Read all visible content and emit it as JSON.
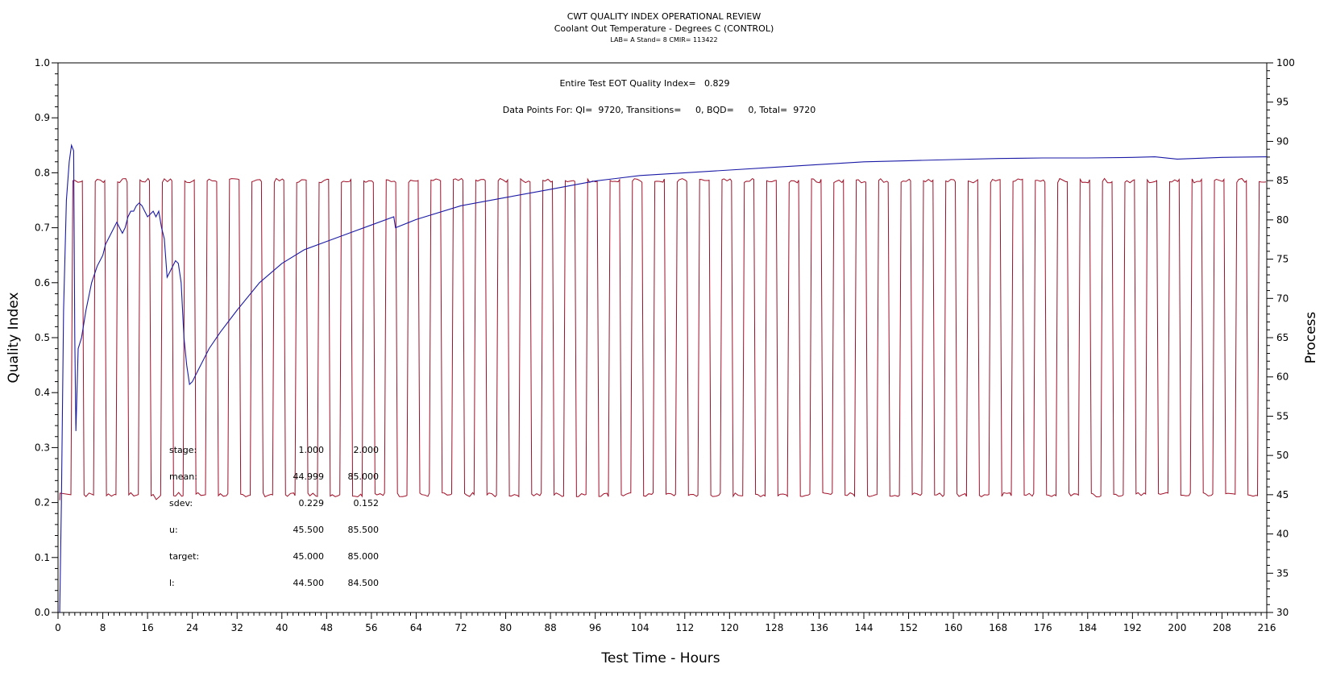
{
  "chart_data": {
    "type": "line",
    "title": "CWT QUALITY INDEX OPERATIONAL REVIEW",
    "subtitle": "Coolant Out Temperature - Degrees C (CONTROL)",
    "subtitle2": "LAB= A Stand= 8 CMIR= 113422",
    "xlabel": "Test Time - Hours",
    "ylabel": "Quality Index",
    "y2label": "Process",
    "xlim": [
      0,
      216
    ],
    "ylim": [
      0,
      1.0
    ],
    "y2lim": [
      30,
      100
    ],
    "xticks": [
      "0",
      "8",
      "16",
      "24",
      "32",
      "40",
      "48",
      "56",
      "64",
      "72",
      "80",
      "88",
      "96",
      "104",
      "112",
      "120",
      "128",
      "136",
      "144",
      "152",
      "160",
      "168",
      "176",
      "184",
      "192",
      "200",
      "208",
      "216"
    ],
    "yticks": [
      "0.0",
      "0.1",
      "0.2",
      "0.3",
      "0.4",
      "0.5",
      "0.6",
      "0.7",
      "0.8",
      "0.9",
      "1.0"
    ],
    "y2ticks": [
      "30",
      "35",
      "40",
      "45",
      "50",
      "55",
      "60",
      "65",
      "70",
      "75",
      "80",
      "85",
      "90",
      "95",
      "100"
    ],
    "annotations": {
      "qi_line": "Entire Test EOT Quality Index=   0.829",
      "points_line": "Data Points For: QI=  9720, Transitions=     0, BQD=     0, Total=  9720"
    },
    "stats_table": {
      "rows": [
        {
          "label": "stage:",
          "v1": "1.000",
          "v2": "2.000"
        },
        {
          "label": "mean:",
          "v1": "44.999",
          "v2": "85.000"
        },
        {
          "label": "sdev:",
          "v1": "0.229",
          "v2": "0.152"
        },
        {
          "label": "u:",
          "v1": "45.500",
          "v2": "85.500"
        },
        {
          "label": "target:",
          "v1": "45.000",
          "v2": "85.000"
        },
        {
          "label": "l:",
          "v1": "44.500",
          "v2": "84.500"
        }
      ]
    },
    "series": [
      {
        "axis": "left",
        "color": "#1a1aa6",
        "points": [
          [
            0.3,
            0.0
          ],
          [
            0.6,
            0.2
          ],
          [
            1.0,
            0.55
          ],
          [
            1.5,
            0.75
          ],
          [
            2.0,
            0.82
          ],
          [
            2.4,
            0.85
          ],
          [
            2.8,
            0.84
          ],
          [
            3.0,
            0.5
          ],
          [
            3.2,
            0.33
          ],
          [
            3.6,
            0.48
          ],
          [
            4.2,
            0.5
          ],
          [
            5,
            0.55
          ],
          [
            6,
            0.6
          ],
          [
            7,
            0.63
          ],
          [
            8,
            0.65
          ],
          [
            8.5,
            0.67
          ],
          [
            9,
            0.68
          ],
          [
            9.5,
            0.69
          ],
          [
            10,
            0.7
          ],
          [
            10.5,
            0.71
          ],
          [
            11,
            0.7
          ],
          [
            11.5,
            0.69
          ],
          [
            12,
            0.7
          ],
          [
            12.5,
            0.72
          ],
          [
            13,
            0.73
          ],
          [
            13.5,
            0.73
          ],
          [
            14,
            0.74
          ],
          [
            14.5,
            0.745
          ],
          [
            15,
            0.74
          ],
          [
            15.5,
            0.73
          ],
          [
            16,
            0.72
          ],
          [
            16.5,
            0.725
          ],
          [
            17,
            0.73
          ],
          [
            17.5,
            0.72
          ],
          [
            18,
            0.73
          ],
          [
            18.5,
            0.7
          ],
          [
            19,
            0.68
          ],
          [
            19.5,
            0.61
          ],
          [
            20,
            0.62
          ],
          [
            20.5,
            0.63
          ],
          [
            21,
            0.64
          ],
          [
            21.5,
            0.635
          ],
          [
            22,
            0.6
          ],
          [
            22.5,
            0.5
          ],
          [
            23,
            0.45
          ],
          [
            23.5,
            0.415
          ],
          [
            24,
            0.42
          ],
          [
            25,
            0.44
          ],
          [
            27,
            0.48
          ],
          [
            29,
            0.51
          ],
          [
            32,
            0.55
          ],
          [
            36,
            0.6
          ],
          [
            40,
            0.635
          ],
          [
            44,
            0.66
          ],
          [
            48,
            0.675
          ],
          [
            52,
            0.69
          ],
          [
            56,
            0.705
          ],
          [
            60,
            0.72
          ],
          [
            60.3,
            0.7
          ],
          [
            64,
            0.715
          ],
          [
            72,
            0.74
          ],
          [
            80,
            0.755
          ],
          [
            88,
            0.77
          ],
          [
            96,
            0.785
          ],
          [
            104,
            0.795
          ],
          [
            112,
            0.8
          ],
          [
            120,
            0.805
          ],
          [
            128,
            0.81
          ],
          [
            136,
            0.815
          ],
          [
            144,
            0.82
          ],
          [
            152,
            0.822
          ],
          [
            160,
            0.824
          ],
          [
            168,
            0.826
          ],
          [
            176,
            0.827
          ],
          [
            184,
            0.827
          ],
          [
            192,
            0.828
          ],
          [
            196,
            0.829
          ],
          [
            200,
            0.825
          ],
          [
            208,
            0.828
          ],
          [
            216,
            0.829
          ]
        ]
      },
      {
        "axis": "right",
        "color": "#a01028",
        "pattern": "square-wave",
        "low": 45.0,
        "high": 85.0,
        "start_hour": 2.5,
        "period_hours": 4.0,
        "duty": 0.5
      }
    ]
  }
}
